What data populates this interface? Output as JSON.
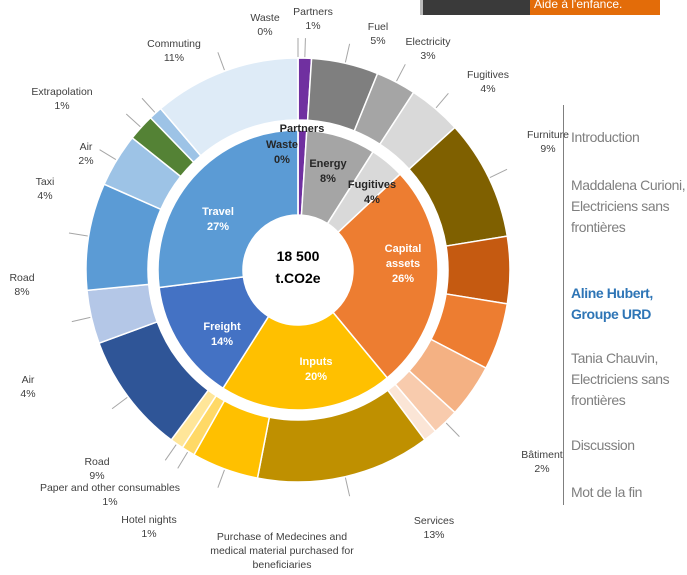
{
  "banner": "Aide à l'enfance.",
  "chart_data": {
    "type": "sunburst",
    "center_title": "18 500",
    "center_subtitle": "t.CO2e",
    "inner": {
      "categories": [
        "Partners",
        "Energy",
        "Fugitives",
        "Capital assets",
        "Inputs",
        "Freight",
        "Travel",
        "Waste"
      ],
      "values": [
        1,
        8,
        4,
        26,
        20,
        14,
        27,
        0
      ],
      "value_labels": [
        null,
        "8%",
        "4%",
        "26%",
        "20%",
        "14%",
        "27%",
        "0%"
      ],
      "colors": [
        "#7030a0",
        "#a5a5a5",
        "#d9d9d9",
        "#ed7d31",
        "#ffc000",
        "#4472c4",
        "#5b9bd5",
        "#404040"
      ]
    },
    "outer": {
      "categories": [
        "Partners",
        "Fuel",
        "Electricity",
        "Fugitives",
        "Furniture",
        null,
        null,
        null,
        "Bâtiment",
        null,
        "Services",
        "Purchase of Medecines and medical material purchased for beneficiaries",
        "Hotel nights",
        "Paper and other consumables",
        "Road",
        "Air",
        "Road",
        "Taxi",
        "Air",
        "Extrapolation",
        "Commuting",
        "Waste"
      ],
      "values": [
        1,
        5,
        3,
        4,
        9,
        5,
        5,
        4,
        2,
        1,
        13,
        5,
        1,
        1,
        9,
        4,
        8,
        4,
        2,
        1,
        11,
        0
      ],
      "value_labels": [
        "1%",
        "5%",
        "3%",
        "4%",
        "9%",
        null,
        null,
        null,
        "2%",
        null,
        "13%",
        null,
        "1%",
        "1%",
        "9%",
        "4%",
        "8%",
        "4%",
        "2%",
        "1%",
        "11%",
        "0%"
      ],
      "colors": [
        "#7030a0",
        "#7f7f7f",
        "#a5a5a5",
        "#d9d9d9",
        "#7f6000",
        "#c55a11",
        "#ed7d31",
        "#f4b183",
        "#f8cbad",
        "#fbe5d6",
        "#bf9000",
        "#ffc000",
        "#ffd966",
        "#ffe699",
        "#2f5597",
        "#b4c7e7",
        "#5b9bd5",
        "#9dc3e6",
        "#548235",
        "#9dc3e6",
        "#deebf7",
        "#404040"
      ]
    }
  },
  "menu": {
    "items": [
      "Introduction",
      "Maddalena Curioni, Electriciens sans frontières",
      "Aline Hubert, Groupe URD",
      "Tania Chauvin, Electriciens sans frontières",
      "Discussion",
      "Mot de la fin"
    ],
    "active": 2
  }
}
